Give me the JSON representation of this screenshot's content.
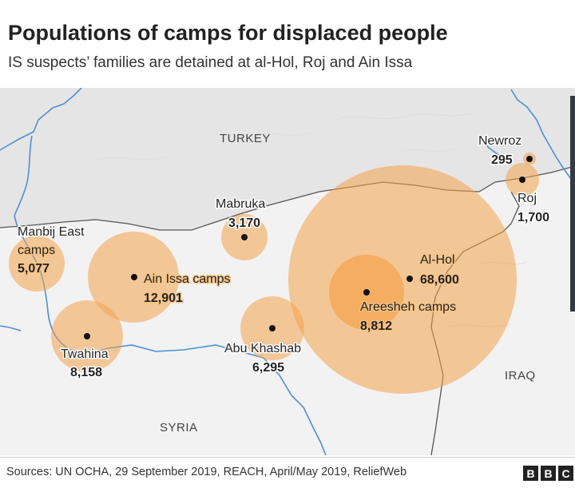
{
  "header": {
    "title": "Populations of camps for displaced people",
    "subtitle": "IS suspects’ families are detained at al-Hol, Roj and Ain Issa"
  },
  "map": {
    "countries": {
      "turkey": "TURKEY",
      "syria": "SYRIA",
      "iraq": "IRAQ"
    },
    "colors": {
      "bubble": "#f4a24a",
      "land_syria": "#f2f2f2",
      "land_turkey": "#e5e5e5",
      "river": "#4a90d9",
      "border": "#555555"
    },
    "camps": {
      "manbij_east": {
        "name_line1": "Manbij East",
        "name_line2": "camps",
        "population": "5,077"
      },
      "ain_issa": {
        "name": "Ain Issa camps",
        "population": "12,901"
      },
      "twahina": {
        "name": "Twahina",
        "population": "8,158"
      },
      "mabruka": {
        "name": "Mabruka",
        "population": "3,170"
      },
      "abu_khashab": {
        "name": "Abu Khashab",
        "population": "6,295"
      },
      "al_hol": {
        "name": "Al-Hol",
        "population": "68,600"
      },
      "areesheh": {
        "name": "Areesheh camps",
        "population": "8,812"
      },
      "newroz": {
        "name": "Newroz",
        "population": "295"
      },
      "roj": {
        "name": "Roj",
        "population": "1,700"
      }
    }
  },
  "footer": {
    "source": "Sources: UN OCHA, 29 September 2019, REACH, April/May 2019, ReliefWeb",
    "logo": [
      "B",
      "B",
      "C"
    ]
  }
}
